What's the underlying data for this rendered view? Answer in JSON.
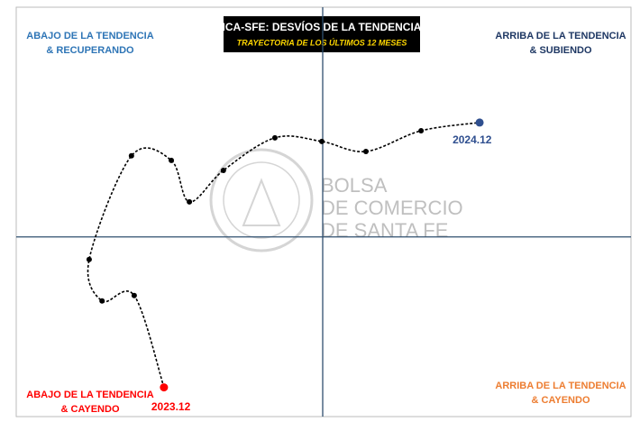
{
  "chart_data": {
    "type": "line",
    "title": "ICA-SFE: DESVÍOS DE LA TENDENCIA",
    "subtitle": "TRAYECTORIA DE LOS ÚLTIMOS 12 MESES",
    "quadrants": {
      "top_left": {
        "lines": [
          "ABAJO DE LA TENDENCIA",
          "& RECUPERANDO"
        ],
        "color": "#2e75b6"
      },
      "top_right": {
        "lines": [
          "ARRIBA DE LA TENDENCIA",
          "& SUBIENDO"
        ],
        "color": "#1f3864"
      },
      "bottom_left": {
        "lines": [
          "ABAJO DE LA TENDENCIA",
          "& CAYENDO"
        ],
        "color": "#ff0000"
      },
      "bottom_right": {
        "lines": [
          "ARRIBA DE LA TENDENCIA",
          "& CAYENDO"
        ],
        "color": "#ed7d31"
      }
    },
    "watermark": [
      "BOLSA",
      "DE COMERCIO",
      "DE SANTA FE"
    ],
    "xlim": [
      -10,
      10
    ],
    "ylim": [
      -8,
      10
    ],
    "series": [
      {
        "color": "#000000",
        "x": [
          -5.18,
          -6.15,
          -7.2,
          -7.62,
          -6.24,
          -4.94,
          -4.35,
          -3.24,
          -1.56,
          -0.03,
          1.41,
          3.21,
          5.12
        ],
        "values": [
          -6.6,
          -2.57,
          -2.81,
          -0.99,
          3.56,
          3.36,
          1.54,
          2.92,
          4.35,
          4.19,
          3.75,
          4.66,
          5.02
        ],
        "start_label": "2023.12",
        "start_color": "#ff0000",
        "end_label": "2024.12",
        "end_color": "#2f4f8f"
      }
    ]
  }
}
